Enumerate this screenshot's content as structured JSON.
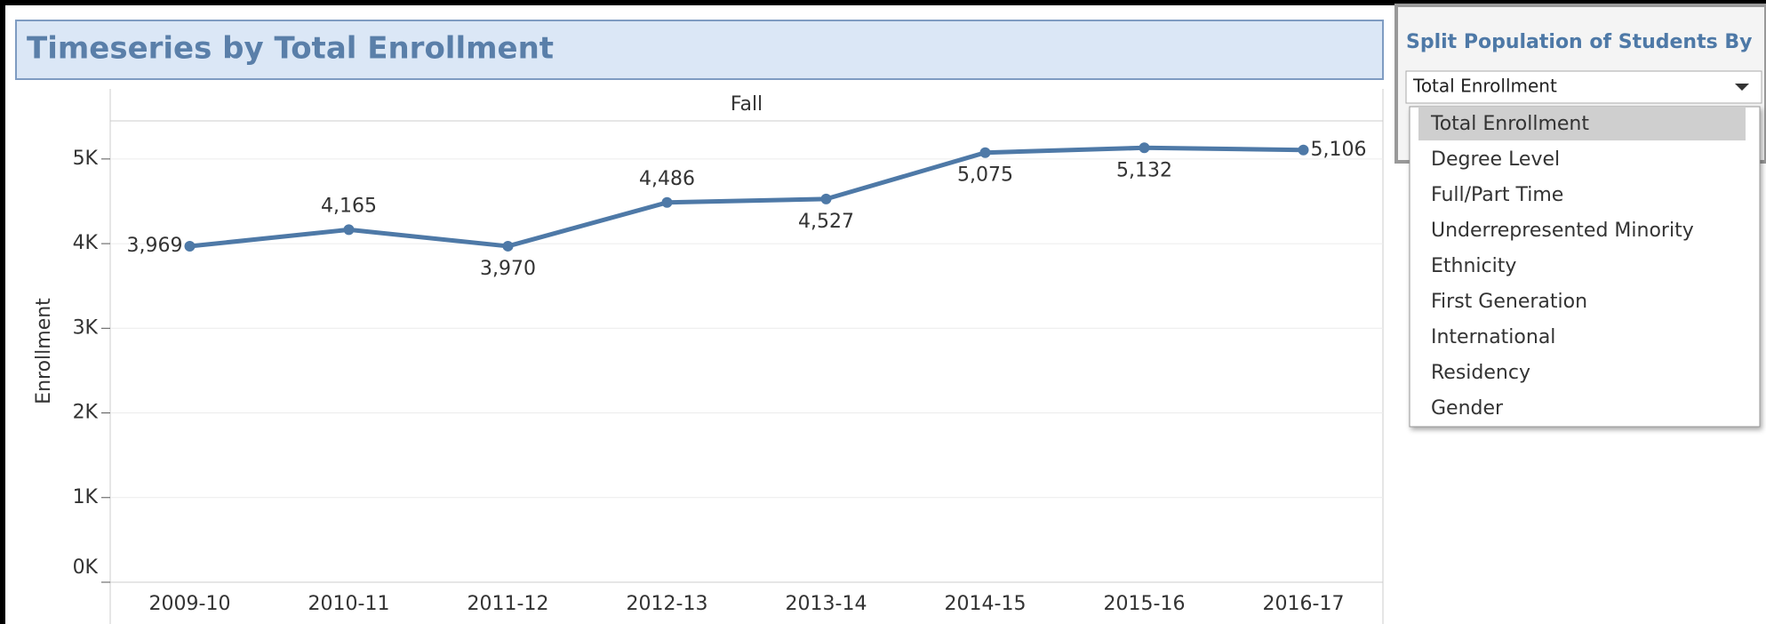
{
  "chart_data": {
    "type": "line",
    "title": "Timeseries by Total Enrollment",
    "header": "Fall",
    "y_label": "Enrollment",
    "categories": [
      "2009-10",
      "2010-11",
      "2011-12",
      "2012-13",
      "2013-14",
      "2014-15",
      "2015-16",
      "2016-17"
    ],
    "series": [
      {
        "name": "Enrollment",
        "color": "#4e79a7",
        "values": [
          3969,
          4165,
          3970,
          4486,
          4527,
          5075,
          5132,
          5106
        ],
        "value_labels": [
          "3,969",
          "4,165",
          "3,970",
          "4,486",
          "4,527",
          "5,075",
          "5,132",
          "5,106"
        ]
      }
    ],
    "ylim": [
      0,
      5450
    ],
    "yticks": [
      {
        "value": 0,
        "label": "0K"
      },
      {
        "value": 1000,
        "label": "1K"
      },
      {
        "value": 2000,
        "label": "2K"
      },
      {
        "value": 3000,
        "label": "3K"
      },
      {
        "value": 4000,
        "label": "4K"
      },
      {
        "value": 5000,
        "label": "5K"
      }
    ],
    "grid": true
  },
  "filter": {
    "title": "Split Population of Students By",
    "selected": "Total Enrollment",
    "options": [
      "Total Enrollment",
      "Degree Level",
      "Full/Part Time",
      "Underrepresented Minority",
      "Ethnicity",
      "First Generation",
      "International",
      "Residency",
      "Gender"
    ]
  }
}
